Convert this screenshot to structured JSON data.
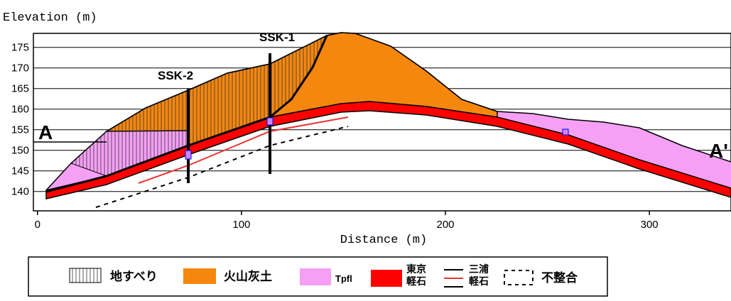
{
  "axes": {
    "y_label": "Elevation (m)",
    "x_label": "Distance (m)",
    "xlim": [
      -2,
      340
    ],
    "ylim": [
      135.3,
      178.4
    ],
    "xticks": [
      0,
      100,
      200,
      300
    ],
    "yticks": [
      140,
      145,
      150,
      155,
      160,
      165,
      170,
      175
    ]
  },
  "section": {
    "start_label": "A",
    "end_label": "A'"
  },
  "boreholes": [
    {
      "label": "SSK-1"
    },
    {
      "label": "SSK-2"
    }
  ],
  "legend": [
    {
      "label": "地すべり"
    },
    {
      "label": "火山灰土"
    },
    {
      "label": "Tpfl"
    },
    {
      "label": "東京\n軽石"
    },
    {
      "label": "三浦\n軽石"
    },
    {
      "label": "不整合"
    }
  ]
}
